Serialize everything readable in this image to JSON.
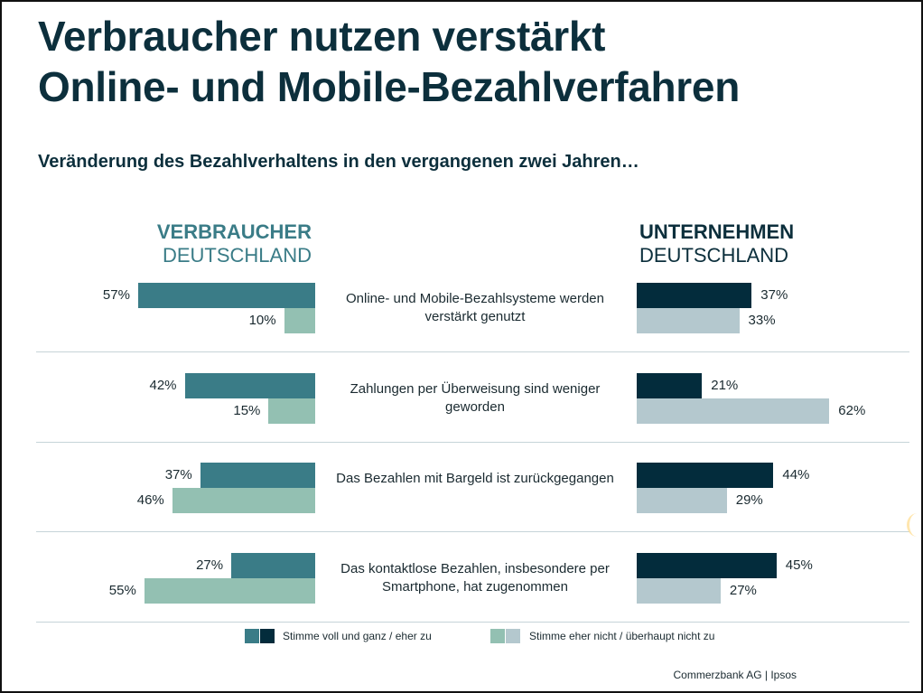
{
  "title_line1": "Verbraucher nutzen verstärkt",
  "title_line2": "Online- und Mobile-Bezahlverfahren",
  "subtitle": "Veränderung des Bezahlverhaltens in den vergangenen zwei Jahren…",
  "groups": {
    "left": {
      "bold": "VERBRAUCHER",
      "normal": "DEUTSCHLAND"
    },
    "right": {
      "bold": "UNTERNEHMEN",
      "normal": "DEUTSCHLAND"
    }
  },
  "legend": {
    "agree": "Stimme voll und ganz / eher zu",
    "disagree": "Stimme eher nicht / überhaupt nicht zu"
  },
  "source": "Commerzbank AG | Ipsos",
  "colors": {
    "consumer_agree": "#3a7c87",
    "consumer_disagree": "#93c0b2",
    "business_agree": "#032c3c",
    "business_disagree": "#b4c8ce"
  },
  "chart_data": {
    "type": "bar",
    "orientation": "horizontal-butterfly",
    "title": "Veränderung des Bezahlverhaltens in den vergangenen zwei Jahren…",
    "unit": "%",
    "categories": [
      "Online- und Mobile-Bezahlsysteme werden verstärkt genutzt",
      "Zahlungen per Überweisung sind weniger geworden",
      "Das Bezahlen mit Bargeld ist zurückgegangen",
      "Das kontaktlose Bezahlen, insbesondere per Smartphone, hat zugenommen"
    ],
    "series": [
      {
        "name": "Verbraucher Deutschland – Stimme voll und ganz / eher zu",
        "side": "left",
        "values": [
          57,
          42,
          37,
          27
        ]
      },
      {
        "name": "Verbraucher Deutschland – Stimme eher nicht / überhaupt nicht zu",
        "side": "left",
        "values": [
          10,
          15,
          46,
          55
        ]
      },
      {
        "name": "Unternehmen Deutschland – Stimme voll und ganz / eher zu",
        "side": "right",
        "values": [
          37,
          21,
          44,
          45
        ]
      },
      {
        "name": "Unternehmen Deutschland – Stimme eher nicht / überhaupt nicht zu",
        "side": "right",
        "values": [
          33,
          62,
          29,
          27
        ]
      }
    ],
    "legend_position": "bottom"
  }
}
